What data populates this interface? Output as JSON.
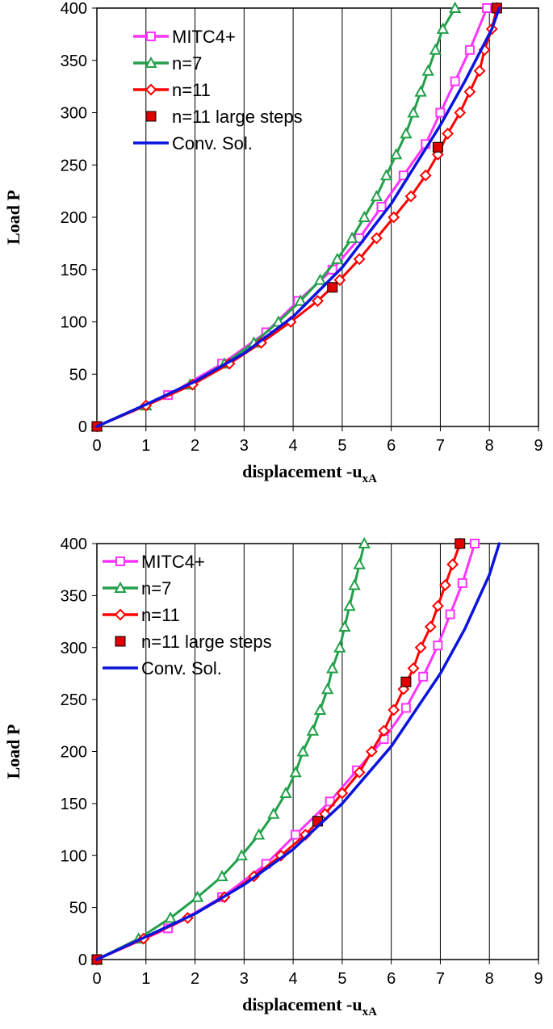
{
  "chart_data": [
    {
      "type": "line",
      "xlabel": "displacement -u",
      "xlabel_sub": "xA",
      "ylabel": "Load  P",
      "xlim": [
        0,
        9
      ],
      "ylim": [
        0,
        400
      ],
      "xticks": [
        "0",
        "1",
        "2",
        "3",
        "4",
        "5",
        "6",
        "7",
        "8",
        "9"
      ],
      "yticks": [
        "0",
        "50",
        "100",
        "150",
        "200",
        "250",
        "300",
        "350",
        "400"
      ],
      "grid": "vertical",
      "legend_position": "top-left",
      "series": [
        {
          "name": "MITC4+",
          "color": "#ff33ff",
          "marker": "square-open",
          "points": [
            [
              0,
              0
            ],
            [
              1.45,
              30
            ],
            [
              2.55,
              60
            ],
            [
              3.45,
              90
            ],
            [
              4.1,
              120
            ],
            [
              4.8,
              150
            ],
            [
              5.35,
              180
            ],
            [
              5.8,
              210
            ],
            [
              6.25,
              240
            ],
            [
              6.7,
              270
            ],
            [
              7.0,
              300
            ],
            [
              7.3,
              330
            ],
            [
              7.6,
              360
            ],
            [
              7.95,
              400
            ]
          ]
        },
        {
          "name": "n=7",
          "color": "#22a04a",
          "marker": "triangle-open",
          "points": [
            [
              0,
              0
            ],
            [
              1.0,
              20
            ],
            [
              1.9,
              40
            ],
            [
              2.6,
              60
            ],
            [
              3.2,
              80
            ],
            [
              3.7,
              100
            ],
            [
              4.15,
              120
            ],
            [
              4.55,
              140
            ],
            [
              4.9,
              160
            ],
            [
              5.2,
              180
            ],
            [
              5.45,
              200
            ],
            [
              5.7,
              220
            ],
            [
              5.9,
              240
            ],
            [
              6.1,
              260
            ],
            [
              6.3,
              280
            ],
            [
              6.45,
              300
            ],
            [
              6.6,
              320
            ],
            [
              6.75,
              340
            ],
            [
              6.9,
              360
            ],
            [
              7.05,
              380
            ],
            [
              7.3,
              400
            ]
          ]
        },
        {
          "name": "n=11",
          "color": "#ff0000",
          "marker": "diamond-open",
          "points": [
            [
              0,
              0
            ],
            [
              1.0,
              20
            ],
            [
              1.95,
              40
            ],
            [
              2.7,
              60
            ],
            [
              3.35,
              80
            ],
            [
              3.95,
              100
            ],
            [
              4.5,
              120
            ],
            [
              4.95,
              140
            ],
            [
              5.35,
              160
            ],
            [
              5.7,
              180
            ],
            [
              6.05,
              200
            ],
            [
              6.4,
              220
            ],
            [
              6.7,
              240
            ],
            [
              6.95,
              260
            ],
            [
              7.15,
              280
            ],
            [
              7.4,
              300
            ],
            [
              7.6,
              320
            ],
            [
              7.8,
              340
            ],
            [
              7.9,
              360
            ],
            [
              8.05,
              380
            ],
            [
              8.15,
              400
            ]
          ]
        },
        {
          "name": "n=11 large steps",
          "color": "#ff0000",
          "marker": "square-filled",
          "points": [
            [
              0,
              0
            ],
            [
              4.8,
              133
            ],
            [
              6.95,
              267
            ],
            [
              8.15,
              400
            ]
          ]
        },
        {
          "name": "Conv. Sol.",
          "color": "#0a14dc",
          "marker": "none",
          "points": [
            [
              0,
              0
            ],
            [
              1,
              21
            ],
            [
              2,
              43
            ],
            [
              3,
              70
            ],
            [
              4,
              105
            ],
            [
              5,
              152
            ],
            [
              6,
              213
            ],
            [
              7,
              288
            ],
            [
              7.5,
              330
            ],
            [
              8.05,
              380
            ],
            [
              8.2,
              400
            ]
          ]
        }
      ]
    },
    {
      "type": "line",
      "xlabel": "displacement -u",
      "xlabel_sub": "xA",
      "ylabel": "Load  P",
      "xlim": [
        0,
        9
      ],
      "ylim": [
        0,
        400
      ],
      "xticks": [
        "0",
        "1",
        "2",
        "3",
        "4",
        "5",
        "6",
        "7",
        "8",
        "9"
      ],
      "yticks": [
        "0",
        "50",
        "100",
        "150",
        "200",
        "250",
        "300",
        "350",
        "400"
      ],
      "grid": "vertical",
      "legend_position": "top-left",
      "series": [
        {
          "name": "MITC4+",
          "color": "#ff33ff",
          "marker": "square-open",
          "points": [
            [
              0,
              0
            ],
            [
              1.45,
              30
            ],
            [
              2.55,
              60
            ],
            [
              3.45,
              92
            ],
            [
              4.05,
              120
            ],
            [
              4.75,
              152
            ],
            [
              5.3,
              182
            ],
            [
              5.85,
              212
            ],
            [
              6.3,
              242
            ],
            [
              6.65,
              272
            ],
            [
              6.95,
              302
            ],
            [
              7.2,
              332
            ],
            [
              7.45,
              362
            ],
            [
              7.7,
              400
            ]
          ]
        },
        {
          "name": "n=7",
          "color": "#22a04a",
          "marker": "triangle-open",
          "points": [
            [
              0,
              0
            ],
            [
              0.85,
              20
            ],
            [
              1.5,
              40
            ],
            [
              2.05,
              60
            ],
            [
              2.55,
              80
            ],
            [
              2.95,
              100
            ],
            [
              3.3,
              120
            ],
            [
              3.6,
              140
            ],
            [
              3.85,
              160
            ],
            [
              4.05,
              180
            ],
            [
              4.2,
              200
            ],
            [
              4.4,
              220
            ],
            [
              4.55,
              240
            ],
            [
              4.7,
              260
            ],
            [
              4.8,
              280
            ],
            [
              4.95,
              300
            ],
            [
              5.05,
              320
            ],
            [
              5.15,
              340
            ],
            [
              5.25,
              360
            ],
            [
              5.35,
              380
            ],
            [
              5.45,
              400
            ]
          ]
        },
        {
          "name": "n=11",
          "color": "#ff0000",
          "marker": "diamond-open",
          "points": [
            [
              0,
              0
            ],
            [
              0.95,
              20
            ],
            [
              1.85,
              40
            ],
            [
              2.6,
              60
            ],
            [
              3.2,
              80
            ],
            [
              3.75,
              100
            ],
            [
              4.25,
              120
            ],
            [
              4.65,
              140
            ],
            [
              5.0,
              160
            ],
            [
              5.35,
              180
            ],
            [
              5.6,
              200
            ],
            [
              5.85,
              220
            ],
            [
              6.05,
              240
            ],
            [
              6.25,
              260
            ],
            [
              6.45,
              280
            ],
            [
              6.6,
              300
            ],
            [
              6.8,
              320
            ],
            [
              6.95,
              340
            ],
            [
              7.1,
              360
            ],
            [
              7.25,
              380
            ],
            [
              7.4,
              400
            ]
          ]
        },
        {
          "name": "n=11 large steps",
          "color": "#ff0000",
          "marker": "square-filled",
          "points": [
            [
              0,
              0
            ],
            [
              4.5,
              133
            ],
            [
              6.3,
              267
            ],
            [
              7.4,
              400
            ]
          ]
        },
        {
          "name": "Conv. Sol.",
          "color": "#0a14dc",
          "marker": "none",
          "points": [
            [
              0,
              0
            ],
            [
              1,
              22
            ],
            [
              2,
              44
            ],
            [
              3,
              72
            ],
            [
              4,
              106
            ],
            [
              5,
              150
            ],
            [
              6,
              205
            ],
            [
              7,
              275
            ],
            [
              7.5,
              318
            ],
            [
              8.0,
              370
            ],
            [
              8.2,
              400
            ]
          ]
        }
      ]
    }
  ]
}
